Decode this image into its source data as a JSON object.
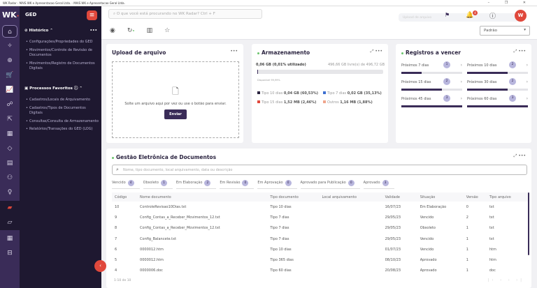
{
  "window": {
    "title": "WK Radar - MAIS WK e Apresentacao Geral Ltda. - MAIS WK e Apresentacao Geral Ltda.",
    "controls": "– ❐ ✕"
  },
  "brand": {
    "logo": "WK",
    "module": "GED"
  },
  "sidebar": {
    "history_title": "Histórico",
    "history": [
      "Configurações/Propriedades do GED",
      "Movimentos/Controle de Revisão de Documentos",
      "Movimentos/Registro de Documentos Digitais"
    ],
    "favorites_title": "Processos Favoritos",
    "favorites": [
      "Cadastros/Locais de Arquivamento",
      "Cadastros/Tipos de Documentos Digitais",
      "Consultas/Consulta de Armazenamento",
      "Relatórios/Transações do GED (LOG)"
    ],
    "rail_icons": [
      "home-icon",
      "sparkle-icon",
      "plus-circle-icon",
      "cart-icon",
      "chart-icon",
      "network-icon",
      "document-export-icon",
      "calendar-icon",
      "tag-icon",
      "notebook-icon",
      "people-icon",
      "lightbulb-icon",
      "folder-ged-icon",
      "folder-icon",
      "calculator-icon",
      "briefcase-icon"
    ]
  },
  "header": {
    "search_placeholder": "O que você está procurando no WK Radar? Ctrl + F",
    "upload_ghost": "Upload de arquivo",
    "notifications": "4",
    "avatar": "W",
    "layout_select": "Padrão"
  },
  "upload": {
    "title": "Upload de arquivo",
    "hint": "Solte um arquivo aqui por vez ou use o botão para enviar.",
    "button": "Enviar"
  },
  "storage": {
    "title": "Armazenamento",
    "used": "0,06 GB (0,01% utilizado)",
    "free": "496,66 GB livre(s) de 496,72 GB",
    "used_percent": 0.01,
    "available": "Disponível 99,99%",
    "legend": [
      {
        "label": "Tipo 10 dias",
        "value": "0,04 GB (60,53%)",
        "color": "#2b2440"
      },
      {
        "label": "Tipo 7 dias",
        "value": "0,02 GB (35,13%)",
        "color": "#3d6fd1"
      },
      {
        "label": "Tipo 15 dias",
        "value": "1,52 MB (2,46%)",
        "color": "#e0483c"
      },
      {
        "label": "Outros",
        "value": "1,16 MB (1,88%)",
        "color": "#f0a58c"
      }
    ]
  },
  "registros": {
    "title": "Registros a vencer",
    "items": [
      {
        "label": "Próximos 7 dias",
        "count": "1",
        "fill": 0.33
      },
      {
        "label": "Próximos 10 dias",
        "count": "2",
        "fill": 0.67
      },
      {
        "label": "Próximos 15 dias",
        "count": "2",
        "fill": 0.67
      },
      {
        "label": "Próximos 30 dias",
        "count": "2",
        "fill": 0.67
      },
      {
        "label": "Próximos 45 dias",
        "count": "3",
        "fill": 1
      },
      {
        "label": "Próximos 60 dias",
        "count": "3",
        "fill": 1
      }
    ]
  },
  "ged": {
    "title": "Gestão Eletrônica de Documentos",
    "search_placeholder": "Nome, tipo documento, local arquivamento, data ou descrição",
    "statuses": [
      {
        "label": "Vencido",
        "count": "4"
      },
      {
        "label": "Obsoleto",
        "count": "1"
      },
      {
        "label": "Em Elaboração",
        "count": "2"
      },
      {
        "label": "Em Revisão",
        "count": "0"
      },
      {
        "label": "Em Aprovação",
        "count": "0"
      },
      {
        "label": "Aprovado para Publicação",
        "count": "0"
      },
      {
        "label": "Aprovado",
        "count": "3"
      }
    ],
    "columns": [
      "Código",
      "Nome documento",
      "Tipo documento",
      "Local arquivamento",
      "Validade",
      "Situação",
      "Versão",
      "Tipo arquivo"
    ],
    "rows": [
      [
        "10",
        "ControleRevisao10Dias.txt",
        "Tipo 10 dias",
        "",
        "16/07/23",
        "Em Elaboração",
        "0",
        "txt"
      ],
      [
        "9",
        "Config_Contas_a_Receber_Movimentos_12.txt",
        "Tipo 7 dias",
        "",
        "29/05/23",
        "Vencido",
        "2",
        "txt"
      ],
      [
        "8",
        "Config_Contas_a_Receber_Movimentos_12.txt",
        "Tipo 7 dias",
        "",
        "29/05/23",
        "Obsoleto",
        "1",
        "txt"
      ],
      [
        "7",
        "Config_Balancete.txt",
        "Tipo 7 dias",
        "",
        "29/05/23",
        "Vencido",
        "1",
        "txt"
      ],
      [
        "6",
        "0000012.htm",
        "Tipo 10 dias",
        "",
        "01/07/23",
        "Vencido",
        "1",
        "htm"
      ],
      [
        "5",
        "0000012.htm",
        "Tipo 365 dias",
        "",
        "08/10/23",
        "Aprovado",
        "1",
        "htm"
      ],
      [
        "4",
        "0000006.doc",
        "Tipo 60 dias",
        "",
        "20/08/23",
        "Aprovado",
        "1",
        "doc"
      ]
    ],
    "pagination": "1-10 de 10"
  }
}
